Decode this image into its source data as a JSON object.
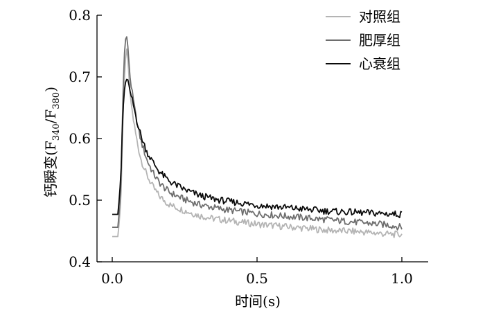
{
  "chart_data": {
    "type": "line",
    "xlabel": "时间(s)",
    "ylabel": {
      "prefix": "钙瞬变(F",
      "sub1": "340",
      "mid": "/F",
      "sub2": "380",
      "suffix": ")"
    },
    "xlim": [
      0.0,
      1.0
    ],
    "ylim": [
      0.4,
      0.8
    ],
    "xticks": [
      {
        "value": 0.0,
        "label": "0.0"
      },
      {
        "value": 0.5,
        "label": "0.5"
      },
      {
        "value": 1.0,
        "label": "1.0"
      }
    ],
    "yticks": [
      {
        "value": 0.4,
        "label": "0.4"
      },
      {
        "value": 0.5,
        "label": "0.5"
      },
      {
        "value": 0.6,
        "label": "0.6"
      },
      {
        "value": 0.7,
        "label": "0.7"
      },
      {
        "value": 0.8,
        "label": "0.8"
      }
    ],
    "grid": false,
    "legend_position": "top-right",
    "series": [
      {
        "name": "对照组",
        "color": "#b4b4b4",
        "x": [
          0.0,
          0.02,
          0.03,
          0.035,
          0.04,
          0.045,
          0.05,
          0.055,
          0.06,
          0.07,
          0.08,
          0.09,
          0.1,
          0.12,
          0.14,
          0.16,
          0.18,
          0.2,
          0.25,
          0.3,
          0.35,
          0.4,
          0.45,
          0.5,
          0.55,
          0.6,
          0.65,
          0.7,
          0.75,
          0.8,
          0.85,
          0.9,
          0.95,
          1.0
        ],
        "y": [
          0.441,
          0.441,
          0.5,
          0.6,
          0.68,
          0.725,
          0.745,
          0.725,
          0.68,
          0.64,
          0.61,
          0.585,
          0.565,
          0.54,
          0.522,
          0.508,
          0.499,
          0.492,
          0.483,
          0.475,
          0.47,
          0.467,
          0.464,
          0.461,
          0.459,
          0.457,
          0.455,
          0.453,
          0.451,
          0.45,
          0.449,
          0.447,
          0.445,
          0.444
        ]
      },
      {
        "name": "肥厚组",
        "color": "#6e6e6e",
        "x": [
          0.0,
          0.02,
          0.03,
          0.035,
          0.04,
          0.045,
          0.05,
          0.055,
          0.06,
          0.07,
          0.08,
          0.09,
          0.1,
          0.12,
          0.14,
          0.16,
          0.18,
          0.2,
          0.25,
          0.3,
          0.35,
          0.4,
          0.45,
          0.5,
          0.55,
          0.6,
          0.65,
          0.7,
          0.75,
          0.8,
          0.85,
          0.9,
          0.95,
          1.0
        ],
        "y": [
          0.456,
          0.456,
          0.52,
          0.63,
          0.72,
          0.76,
          0.765,
          0.745,
          0.705,
          0.67,
          0.64,
          0.615,
          0.595,
          0.565,
          0.545,
          0.53,
          0.52,
          0.512,
          0.501,
          0.493,
          0.488,
          0.484,
          0.481,
          0.478,
          0.476,
          0.474,
          0.472,
          0.47,
          0.468,
          0.466,
          0.464,
          0.462,
          0.46,
          0.456
        ]
      },
      {
        "name": "心衰组",
        "color": "#0a0a0a",
        "x": [
          0.0,
          0.02,
          0.03,
          0.035,
          0.04,
          0.045,
          0.05,
          0.055,
          0.06,
          0.07,
          0.08,
          0.09,
          0.1,
          0.12,
          0.14,
          0.16,
          0.18,
          0.2,
          0.25,
          0.3,
          0.35,
          0.4,
          0.45,
          0.5,
          0.55,
          0.6,
          0.65,
          0.7,
          0.75,
          0.8,
          0.85,
          0.9,
          0.95,
          1.0
        ],
        "y": [
          0.477,
          0.477,
          0.54,
          0.62,
          0.67,
          0.69,
          0.696,
          0.695,
          0.68,
          0.66,
          0.64,
          0.62,
          0.603,
          0.578,
          0.562,
          0.548,
          0.538,
          0.53,
          0.517,
          0.508,
          0.502,
          0.498,
          0.495,
          0.492,
          0.49,
          0.488,
          0.486,
          0.484,
          0.482,
          0.481,
          0.48,
          0.479,
          0.478,
          0.477
        ]
      }
    ]
  }
}
